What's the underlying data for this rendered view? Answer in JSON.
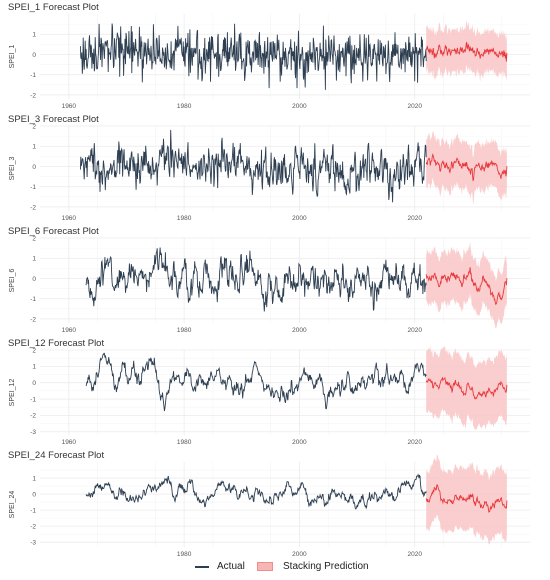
{
  "legend": {
    "actual": "Actual",
    "prediction": "Stacking Prediction"
  },
  "colors": {
    "actual": "#2e3f52",
    "prediction": "#e8383d",
    "band": "#f9c6c6",
    "grid": "#ebebeb"
  },
  "chart_data": [
    {
      "type": "line",
      "title": "SPEI_1 Forecast Plot",
      "ylabel": "SPEI_1",
      "xlim": [
        1955,
        2040
      ],
      "ylim": [
        -2.2,
        2.0
      ],
      "yticks": [
        -2,
        -1,
        0,
        1
      ],
      "xticks": [
        1960,
        1980,
        2000,
        2020
      ],
      "actual_range": [
        1962,
        2022
      ],
      "actual_sd": 0.55,
      "actual_ar": 0.1,
      "forecast_range": [
        2022,
        2036
      ],
      "forecast_mean": [
        0.2,
        -0.05
      ],
      "forecast_halfwidth": [
        1.1,
        1.0
      ],
      "series": [
        {
          "name": "Actual"
        },
        {
          "name": "Stacking Prediction"
        }
      ]
    },
    {
      "type": "line",
      "title": "SPEI_3 Forecast Plot",
      "ylabel": "SPEI_3",
      "xlim": [
        1955,
        2040
      ],
      "ylim": [
        -2.2,
        2.0
      ],
      "yticks": [
        -2,
        -1,
        0,
        1,
        2
      ],
      "xticks": [
        1960,
        1980,
        2000,
        2020
      ],
      "actual_range": [
        1962,
        2022
      ],
      "actual_sd": 0.55,
      "actual_ar": 0.55,
      "forecast_range": [
        2022,
        2036
      ],
      "forecast_mean": [
        0.1,
        -0.25
      ],
      "forecast_halfwidth": [
        1.2,
        1.1
      ],
      "series": [
        {
          "name": "Actual"
        },
        {
          "name": "Stacking Prediction"
        }
      ]
    },
    {
      "type": "line",
      "title": "SPEI_6 Forecast Plot",
      "ylabel": "SPEI_6",
      "xlim": [
        1955,
        2040
      ],
      "ylim": [
        -2.2,
        2.0
      ],
      "yticks": [
        -2,
        -1,
        0,
        1,
        2
      ],
      "xticks": [
        1960,
        1980,
        2000,
        2020
      ],
      "actual_range": [
        1963,
        2022
      ],
      "actual_sd": 0.55,
      "actual_ar": 0.8,
      "forecast_range": [
        2022,
        2036
      ],
      "forecast_mean": [
        0.3,
        -0.6
      ],
      "forecast_halfwidth": [
        1.3,
        1.2
      ],
      "series": [
        {
          "name": "Actual"
        },
        {
          "name": "Stacking Prediction"
        }
      ]
    },
    {
      "type": "line",
      "title": "SPEI_12 Forecast Plot",
      "ylabel": "SPEI_12",
      "xlim": [
        1955,
        2040
      ],
      "ylim": [
        -3.2,
        2.0
      ],
      "yticks": [
        -3,
        -2,
        -1,
        0,
        1,
        2
      ],
      "xticks": [
        1960,
        1980,
        2000,
        2020
      ],
      "actual_range": [
        1963,
        2022
      ],
      "actual_sd": 0.55,
      "actual_ar": 0.92,
      "forecast_range": [
        2022,
        2036
      ],
      "forecast_mean": [
        0.1,
        -0.8
      ],
      "forecast_halfwidth": [
        1.9,
        2.0
      ],
      "series": [
        {
          "name": "Actual"
        },
        {
          "name": "Stacking Prediction"
        }
      ]
    },
    {
      "type": "line",
      "title": "SPEI_24 Forecast Plot",
      "ylabel": "SPEI_24",
      "xlim": [
        1955,
        2040
      ],
      "ylim": [
        -3.3,
        2.0
      ],
      "yticks": [
        -3,
        -2,
        -1,
        0,
        1
      ],
      "xticks": [
        1980,
        2000,
        2020
      ],
      "actual_range": [
        1963,
        2022
      ],
      "actual_sd": 0.5,
      "actual_ar": 0.96,
      "forecast_range": [
        2022,
        2036
      ],
      "forecast_mean": [
        -0.3,
        -0.8
      ],
      "forecast_halfwidth": [
        1.8,
        2.1
      ],
      "series": [
        {
          "name": "Actual"
        },
        {
          "name": "Stacking Prediction"
        }
      ]
    }
  ]
}
